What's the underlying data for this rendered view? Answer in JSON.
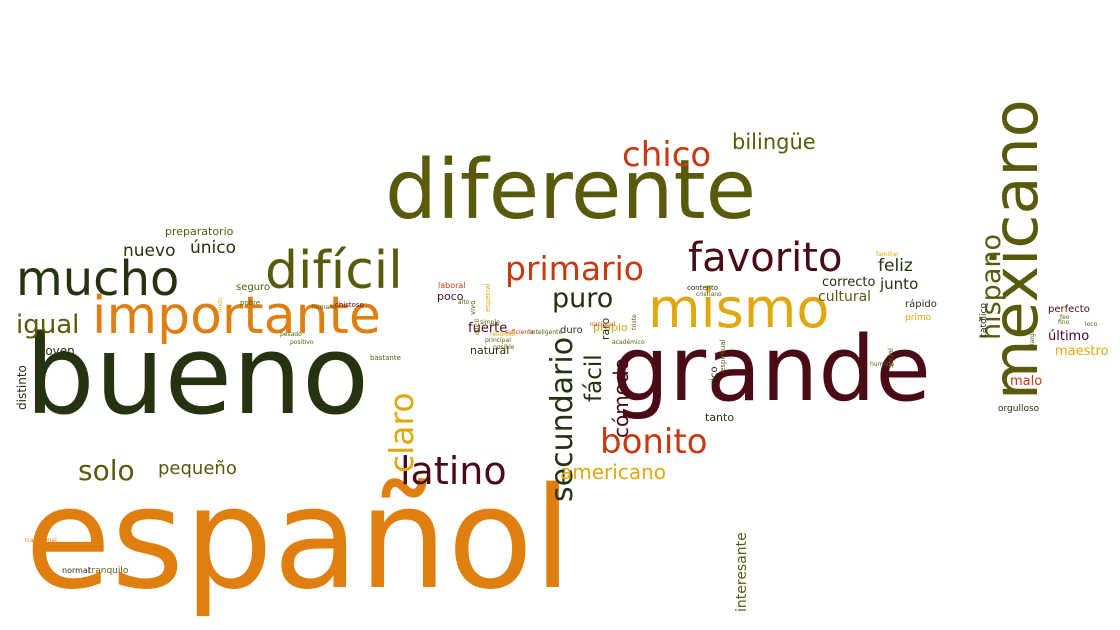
{
  "colors": {
    "dark_green": "#253310",
    "olive": "#5a5a0d",
    "orange": "#e07f10",
    "red_orange": "#c63a12",
    "maroon": "#4a0b17",
    "gold": "#e0a80c"
  },
  "words": [
    {
      "text": "español",
      "color": "orange"
    },
    {
      "text": "bueno",
      "color": "dark_green"
    },
    {
      "text": "grande",
      "color": "maroon"
    },
    {
      "text": "diferente",
      "color": "olive"
    },
    {
      "text": "mexicano",
      "color": "olive"
    },
    {
      "text": "importante",
      "color": "orange"
    },
    {
      "text": "mucho",
      "color": "dark_green"
    },
    {
      "text": "difícil",
      "color": "olive"
    },
    {
      "text": "mismo",
      "color": "gold"
    },
    {
      "text": "favorito",
      "color": "maroon"
    },
    {
      "text": "primario",
      "color": "red_orange"
    },
    {
      "text": "latino",
      "color": "maroon"
    },
    {
      "text": "secundario",
      "color": "dark_green"
    },
    {
      "text": "bonito",
      "color": "red_orange"
    },
    {
      "text": "hispano",
      "color": "olive"
    },
    {
      "text": "chico",
      "color": "red_orange"
    },
    {
      "text": "claro",
      "color": "gold"
    },
    {
      "text": "solo",
      "color": "olive"
    },
    {
      "text": "americano",
      "color": "gold"
    },
    {
      "text": "igual",
      "color": "olive"
    },
    {
      "text": "puro",
      "color": "dark_green"
    },
    {
      "text": "fácil",
      "color": "dark_green"
    },
    {
      "text": "bilingüe",
      "color": "olive"
    },
    {
      "text": "cómodo",
      "color": "maroon"
    },
    {
      "text": "pequeño",
      "color": "olive"
    },
    {
      "text": "nuevo",
      "color": "dark_green"
    },
    {
      "text": "único",
      "color": "dark_green"
    },
    {
      "text": "feliz",
      "color": "dark_green"
    },
    {
      "text": "junto",
      "color": "dark_green"
    },
    {
      "text": "interesante",
      "color": "olive"
    },
    {
      "text": "distinto",
      "color": "dark_green"
    },
    {
      "text": "joven",
      "color": "dark_green"
    },
    {
      "text": "fuerte",
      "color": "maroon"
    },
    {
      "text": "natural",
      "color": "dark_green"
    },
    {
      "text": "poco",
      "color": "maroon"
    },
    {
      "text": "cultural",
      "color": "olive"
    },
    {
      "text": "correcto",
      "color": "dark_green"
    },
    {
      "text": "tanto",
      "color": "dark_green"
    },
    {
      "text": "rápido",
      "color": "dark_green"
    },
    {
      "text": "católico",
      "color": "dark_green"
    },
    {
      "text": "perfecto",
      "color": "maroon"
    },
    {
      "text": "último",
      "color": "maroon"
    },
    {
      "text": "maestro",
      "color": "gold"
    },
    {
      "text": "malo",
      "color": "red_orange"
    },
    {
      "text": "orgulloso",
      "color": "dark_green"
    },
    {
      "text": "preparatorio",
      "color": "olive"
    },
    {
      "text": "seguro",
      "color": "olive"
    },
    {
      "text": "propio",
      "color": "gold"
    },
    {
      "text": "raro",
      "color": "dark_green"
    },
    {
      "text": "duro",
      "color": "dark_green"
    },
    {
      "text": "rico",
      "color": "dark_green"
    },
    {
      "text": "tranquilo",
      "color": "olive"
    },
    {
      "text": "normal",
      "color": "dark_green"
    },
    {
      "text": "primo",
      "color": "gold"
    },
    {
      "text": "laboral",
      "color": "red_orange"
    },
    {
      "text": "pobre",
      "color": "olive"
    },
    {
      "text": "chistoso",
      "color": "maroon"
    },
    {
      "text": "contento",
      "color": "dark_green"
    },
    {
      "text": "bastante",
      "color": "olive"
    },
    {
      "text": "espiritual",
      "color": "olive"
    },
    {
      "text": "especial",
      "color": "gold"
    },
    {
      "text": "social",
      "color": "olive"
    },
    {
      "text": "humano",
      "color": "olive"
    },
    {
      "text": "alto",
      "color": "olive"
    },
    {
      "text": "vivo",
      "color": "olive"
    },
    {
      "text": "simple",
      "color": "olive"
    },
    {
      "text": "familiar",
      "color": "gold"
    },
    {
      "text": "cristiano",
      "color": "olive"
    },
    {
      "text": "suficiente",
      "color": "red_orange"
    },
    {
      "text": "humilde",
      "color": "olive"
    },
    {
      "text": "lindo",
      "color": "gold"
    },
    {
      "text": "nacional",
      "color": "red_orange"
    },
    {
      "text": "triste",
      "color": "olive"
    },
    {
      "text": "largo",
      "color": "olive"
    },
    {
      "text": "fino",
      "color": "olive"
    },
    {
      "text": "pesado",
      "color": "olive"
    },
    {
      "text": "loco",
      "color": "olive"
    },
    {
      "text": "tradicional",
      "color": "orange"
    },
    {
      "text": "inteligente",
      "color": "olive"
    },
    {
      "text": "feo",
      "color": "olive"
    },
    {
      "text": "principal",
      "color": "olive"
    },
    {
      "text": "posible",
      "color": "olive"
    },
    {
      "text": "difícil",
      "color": "olive"
    },
    {
      "text": "académico",
      "color": "olive"
    },
    {
      "text": "positivo",
      "color": "olive"
    },
    {
      "text": "religioso",
      "color": "gold"
    }
  ]
}
